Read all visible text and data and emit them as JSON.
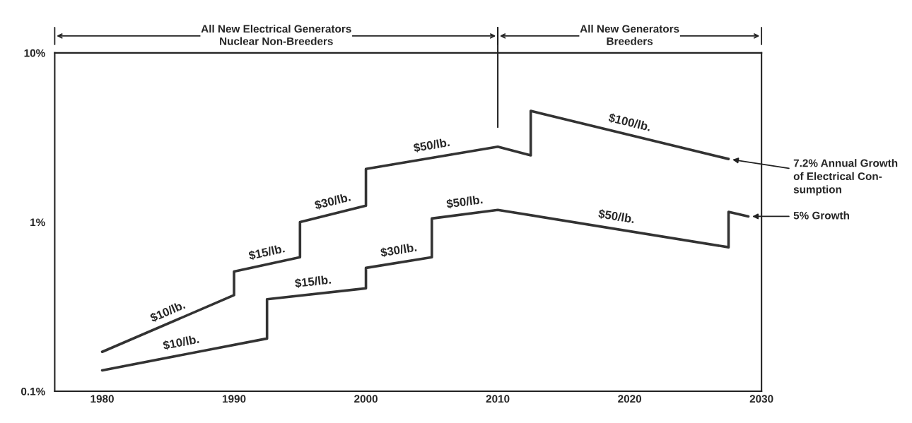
{
  "chart_data": {
    "type": "line",
    "xlim": [
      1976.4,
      2030
    ],
    "xticks": [
      1980,
      1990,
      2000,
      2010,
      2020,
      2030
    ],
    "ylim": [
      0.1,
      10
    ],
    "yticks": [
      {
        "value": 0.1,
        "label": "0.1%"
      },
      {
        "value": 1,
        "label": "1%"
      },
      {
        "value": 10,
        "label": "10%"
      }
    ],
    "log": true,
    "grid": false,
    "line_style": "solid",
    "marker": "none",
    "series": [
      {
        "color": "#333333",
        "x": [
          1980,
          1990,
          1990,
          1995,
          1995,
          2000,
          2000,
          2010,
          2012.5,
          2012.5,
          2027.5
        ],
        "values": [
          0.171,
          0.37,
          0.51,
          0.62,
          1.0,
          1.25,
          2.06,
          2.79,
          2.48,
          4.54,
          2.36
        ]
      },
      {
        "color": "#333333",
        "x": [
          1980,
          1992.5,
          1992.5,
          2000,
          2000,
          2005,
          2005,
          2010,
          2027.5,
          2027.5,
          2029
        ],
        "values": [
          0.133,
          0.205,
          0.35,
          0.406,
          0.536,
          0.62,
          1.05,
          1.18,
          0.71,
          1.15,
          1.08
        ]
      }
    ],
    "ref_lines": [
      {
        "axis": "x",
        "value": 2010
      }
    ],
    "annotations": [
      "All New Electrical Generators\nNuclear Non-Breeders",
      "All New Generators\nBreeders",
      {
        "text": "$10/lb.",
        "x": 1985,
        "y": 0.25
      },
      {
        "text": "$15/lb.",
        "x": 1992.5,
        "y": 0.56
      },
      {
        "text": "$30/lb.",
        "x": 1997.5,
        "y": 1.12
      },
      {
        "text": "$50/lb.",
        "x": 2005,
        "y": 2.4
      },
      {
        "text": "$100/lb.",
        "x": 2020,
        "y": 3.27
      },
      {
        "text": "$10/lb.",
        "x": 1986,
        "y": 0.164
      },
      {
        "text": "$15/lb.",
        "x": 1996,
        "y": 0.375
      },
      {
        "text": "$30/lb.",
        "x": 2002.5,
        "y": 0.576
      },
      {
        "text": "$50/lb.",
        "x": 2007.5,
        "y": 1.11
      },
      {
        "text": "$50/lb.",
        "x": 2019,
        "y": 0.909
      },
      {
        "text": "7.2% Annual Growth\nof Electrical Con-\nsumption",
        "x": 2027.5,
        "y": 2.36
      },
      {
        "text": "5% Growth",
        "x": 2029,
        "y": 1.08
      }
    ]
  }
}
